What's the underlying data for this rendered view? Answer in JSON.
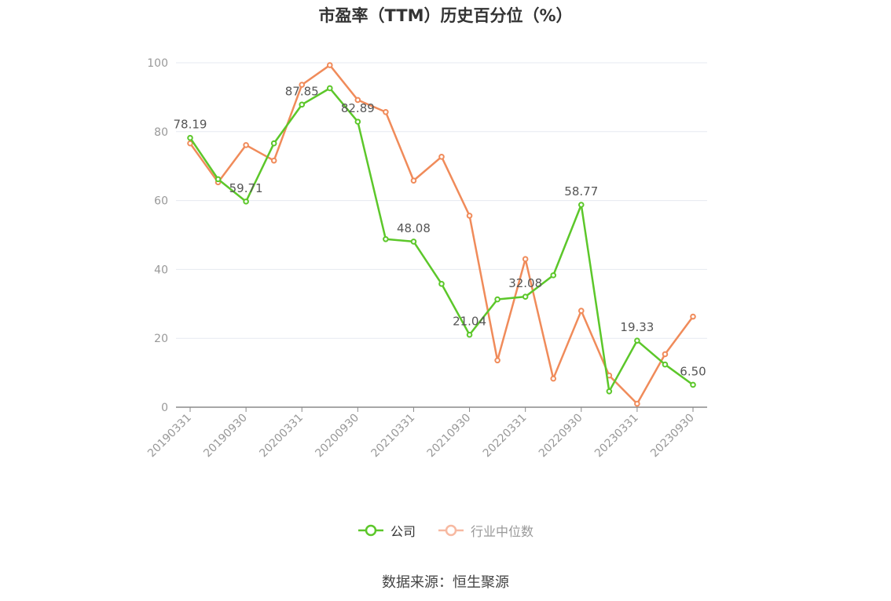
{
  "title": "市盈率（TTM）历史百分位（%）",
  "source_text": "数据来源：恒生聚源",
  "colors": {
    "company": "#5cc72a",
    "industry": "#f08b5a",
    "industry_legend": "#f7b9a1",
    "grid": "#e6e9f0",
    "axis": "#999999"
  },
  "chart_data": {
    "type": "line",
    "title": "市盈率（TTM）历史百分位（%）",
    "x": [
      "20190331",
      "20190630",
      "20190930",
      "20191231",
      "20200331",
      "20200630",
      "20200930",
      "20201231",
      "20210331",
      "20210630",
      "20210930",
      "20211231",
      "20220331",
      "20220630",
      "20220930",
      "20221231",
      "20230331",
      "20230630",
      "20230930"
    ],
    "x_tick_labels": [
      "20190331",
      "20190930",
      "20200331",
      "20200930",
      "20210331",
      "20210930",
      "20220331",
      "20220930",
      "20230331",
      "20230930"
    ],
    "y_ticks": [
      0,
      20,
      40,
      60,
      80,
      100
    ],
    "ylim": [
      0,
      100
    ],
    "grid": true,
    "legend_position": "bottom",
    "series": [
      {
        "name": "公司",
        "values": [
          78.19,
          66.2,
          59.71,
          76.6,
          87.85,
          92.6,
          82.89,
          48.8,
          48.08,
          35.8,
          21.04,
          31.3,
          32.08,
          38.3,
          58.77,
          4.6,
          19.33,
          12.4,
          6.5
        ],
        "labels": {
          "0": "78.19",
          "2": "59.71",
          "4": "87.85",
          "6": "82.89",
          "8": "48.08",
          "10": "21.04",
          "12": "32.08",
          "14": "58.77",
          "16": "19.33",
          "18": "6.50"
        }
      },
      {
        "name": "行业中位数",
        "values": [
          76.6,
          65.3,
          76.1,
          71.6,
          93.6,
          99.3,
          89.2,
          85.7,
          65.8,
          72.7,
          55.6,
          13.6,
          43.0,
          8.3,
          28.0,
          9.2,
          1.0,
          15.4,
          26.3
        ]
      }
    ]
  }
}
